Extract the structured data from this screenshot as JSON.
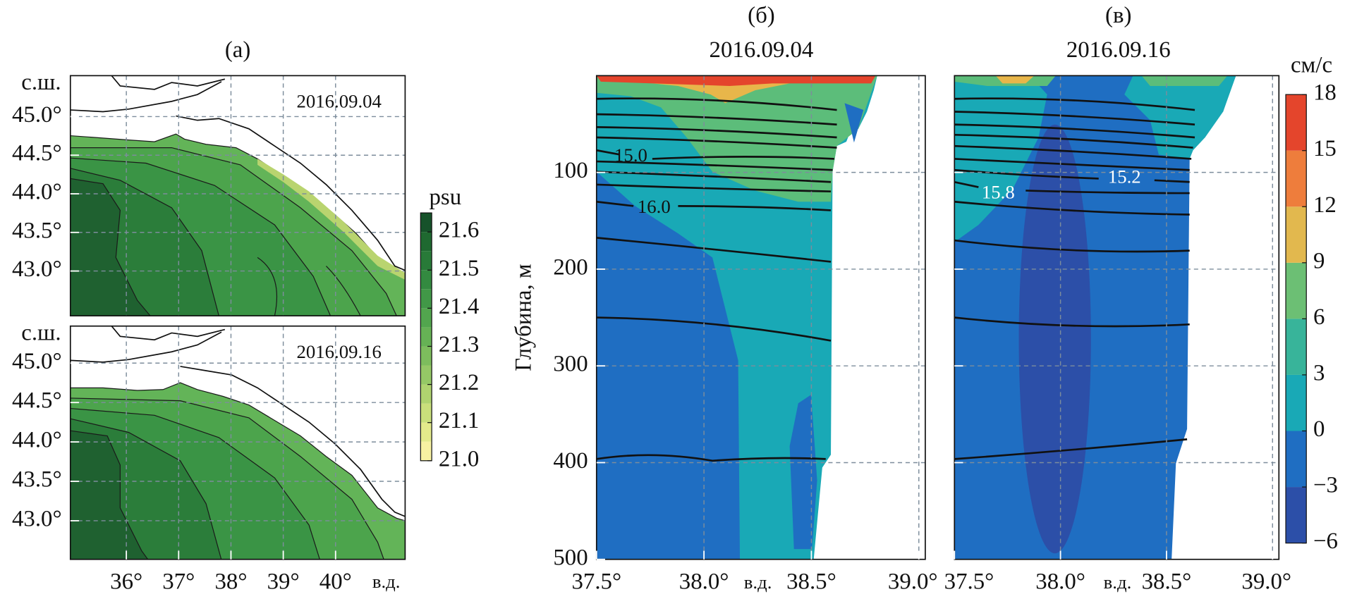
{
  "chart_data": [
    {
      "type": "map",
      "title": "(а)",
      "subtitle": "2016.09.04",
      "ylabel": "с.ш.",
      "xlim": [
        34.93,
        41.33
      ],
      "ylim": [
        42.42,
        45.53
      ],
      "yticks": [
        {
          "value": 45.0,
          "label": "45.0°"
        },
        {
          "value": 44.5,
          "label": "44.5°"
        },
        {
          "value": 44.0,
          "label": "44.0°"
        },
        {
          "value": 43.5,
          "label": "43.5°"
        },
        {
          "value": 43.0,
          "label": "43.0°"
        }
      ],
      "xgrid": [
        36,
        37,
        38,
        39,
        40
      ],
      "grid": true
    },
    {
      "type": "map",
      "subtitle": "2016.09.16",
      "ylabel": "с.ш.",
      "xlabel": "в.д.",
      "xlim": [
        34.93,
        41.33
      ],
      "ylim": [
        42.51,
        45.47
      ],
      "xticks": [
        {
          "value": 36,
          "label": "36°"
        },
        {
          "value": 37,
          "label": "37°"
        },
        {
          "value": 38,
          "label": "38°"
        },
        {
          "value": 39,
          "label": "39°"
        },
        {
          "value": 40,
          "label": "40°"
        }
      ],
      "yticks": [
        {
          "value": 45.0,
          "label": "45.0°"
        },
        {
          "value": 44.5,
          "label": "44.5°"
        },
        {
          "value": 44.0,
          "label": "44.0°"
        },
        {
          "value": 43.5,
          "label": "43.5°"
        },
        {
          "value": 43.0,
          "label": "43.0°"
        }
      ],
      "grid": true
    },
    {
      "type": "colorbar",
      "title": "psu",
      "ylim": [
        21.0,
        21.65
      ],
      "levels": [
        21.0,
        21.05,
        21.1,
        21.15,
        21.2,
        21.25,
        21.3,
        21.35,
        21.4,
        21.45,
        21.5,
        21.55,
        21.6,
        21.65
      ],
      "colors": [
        "#f7f1a2",
        "#e3ea8b",
        "#c9df7b",
        "#afd36f",
        "#95c866",
        "#7dbd5d",
        "#66b255",
        "#52a64e",
        "#419847",
        "#338a40",
        "#287a38",
        "#1f6930",
        "#16522a"
      ],
      "yticks": [
        {
          "value": 21.0,
          "label": "21.0"
        },
        21.1,
        21.2,
        21.3,
        21.4,
        21.5,
        21.6
      ]
    },
    {
      "type": "section",
      "title": "(б)",
      "subtitle": "2016.09.04",
      "ylabel": "Глубина, м",
      "xlabel": "в.д.",
      "xlim": [
        37.5,
        39.03
      ],
      "ylim": [
        500,
        0
      ],
      "xticks": [
        {
          "value": 37.5,
          "label": "37.5°"
        },
        {
          "value": 38.0,
          "label": "38.0°"
        },
        {
          "value": 38.5,
          "label": "38.5°"
        },
        {
          "value": 39.0,
          "label": "39.0°"
        }
      ],
      "yticks": [
        100,
        200,
        300,
        400,
        500
      ],
      "grid": true,
      "annotations": [
        "15.0",
        "16.0"
      ]
    },
    {
      "type": "section",
      "title": "(в)",
      "subtitle": "2016.09.16",
      "xlabel": "в.д.",
      "xlim": [
        37.5,
        39.03
      ],
      "ylim": [
        500,
        0
      ],
      "xticks": [
        {
          "value": 37.5,
          "label": "37.5°"
        },
        {
          "value": 38.0,
          "label": "38.0°"
        },
        {
          "value": 38.5,
          "label": "38.5°"
        },
        {
          "value": 39.0,
          "label": "39.0°"
        }
      ],
      "ygrid": [
        100,
        200,
        300,
        400
      ],
      "grid": true,
      "annotations": [
        "15.2",
        "15.8"
      ]
    },
    {
      "type": "colorbar",
      "title": "см/с",
      "ylim": [
        -6,
        18
      ],
      "levels": [
        -6,
        -3,
        0,
        3,
        6,
        9,
        12,
        15,
        18
      ],
      "colors": [
        "#2c4fa8",
        "#1f6ec2",
        "#19a9b6",
        "#38b49a",
        "#6cbf74",
        "#e2b84e",
        "#ee7d3c",
        "#e4452c"
      ],
      "yticks": [
        {
          "value": -6,
          "label": "−6"
        },
        {
          "value": -3,
          "label": "−3"
        },
        0,
        3,
        6,
        9,
        12,
        15,
        18
      ]
    }
  ]
}
